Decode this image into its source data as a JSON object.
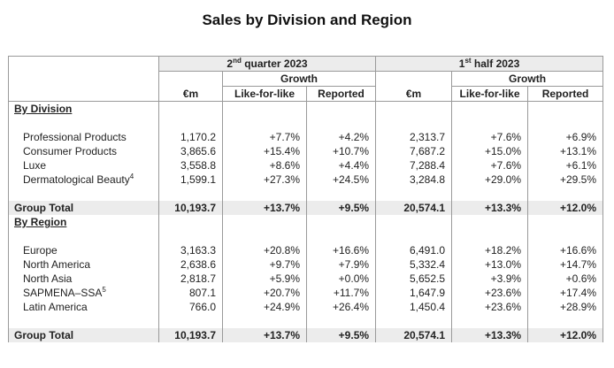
{
  "title": "Sales by Division and Region",
  "header": {
    "q2_pre": "2",
    "q2_sup": "nd",
    "q2_post": " quarter 2023",
    "h1_pre": "1",
    "h1_sup": "st",
    "h1_post": " half 2023",
    "growth": "Growth",
    "eur": "€m",
    "lfl": "Like-for-like",
    "reported": "Reported"
  },
  "division": {
    "label": "By Division",
    "rows": [
      {
        "name": "Professional Products",
        "sup": "",
        "q2_eur": "1,170.2",
        "q2_lfl": "+7.7%",
        "q2_rep": "+4.2%",
        "h1_eur": "2,313.7",
        "h1_lfl": "+7.6%",
        "h1_rep": "+6.9%"
      },
      {
        "name": "Consumer Products",
        "sup": "",
        "q2_eur": "3,865.6",
        "q2_lfl": "+15.4%",
        "q2_rep": "+10.7%",
        "h1_eur": "7,687.2",
        "h1_lfl": "+15.0%",
        "h1_rep": "+13.1%"
      },
      {
        "name": "Luxe",
        "sup": "",
        "q2_eur": "3,558.8",
        "q2_lfl": "+8.6%",
        "q2_rep": "+4.4%",
        "h1_eur": "7,288.4",
        "h1_lfl": "+7.6%",
        "h1_rep": "+6.1%"
      },
      {
        "name": "Dermatological Beauty",
        "sup": "4",
        "q2_eur": "1,599.1",
        "q2_lfl": "+27.3%",
        "q2_rep": "+24.5%",
        "h1_eur": "3,284.8",
        "h1_lfl": "+29.0%",
        "h1_rep": "+29.5%"
      }
    ],
    "total": {
      "name": "Group Total",
      "q2_eur": "10,193.7",
      "q2_lfl": "+13.7%",
      "q2_rep": "+9.5%",
      "h1_eur": "20,574.1",
      "h1_lfl": "+13.3%",
      "h1_rep": "+12.0%"
    }
  },
  "region": {
    "label": "By Region",
    "rows": [
      {
        "name": "Europe",
        "sup": "",
        "q2_eur": "3,163.3",
        "q2_lfl": "+20.8%",
        "q2_rep": "+16.6%",
        "h1_eur": "6,491.0",
        "h1_lfl": "+18.2%",
        "h1_rep": "+16.6%"
      },
      {
        "name": "North America",
        "sup": "",
        "q2_eur": "2,638.6",
        "q2_lfl": "+9.7%",
        "q2_rep": "+7.9%",
        "h1_eur": "5,332.4",
        "h1_lfl": "+13.0%",
        "h1_rep": "+14.7%"
      },
      {
        "name": "North Asia",
        "sup": "",
        "q2_eur": "2,818.7",
        "q2_lfl": "+5.9%",
        "q2_rep": "+0.0%",
        "h1_eur": "5,652.5",
        "h1_lfl": "+3.9%",
        "h1_rep": "+0.6%"
      },
      {
        "name": "SAPMENA–SSA",
        "sup": "5",
        "q2_eur": "807.1",
        "q2_lfl": "+20.7%",
        "q2_rep": "+11.7%",
        "h1_eur": "1,647.9",
        "h1_lfl": "+23.6%",
        "h1_rep": "+17.4%"
      },
      {
        "name": "Latin America",
        "sup": "",
        "q2_eur": "766.0",
        "q2_lfl": "+24.9%",
        "q2_rep": "+26.4%",
        "h1_eur": "1,450.4",
        "h1_lfl": "+23.6%",
        "h1_rep": "+28.9%"
      }
    ],
    "total": {
      "name": "Group Total",
      "q2_eur": "10,193.7",
      "q2_lfl": "+13.7%",
      "q2_rep": "+9.5%",
      "h1_eur": "20,574.1",
      "h1_lfl": "+13.3%",
      "h1_rep": "+12.0%"
    }
  }
}
